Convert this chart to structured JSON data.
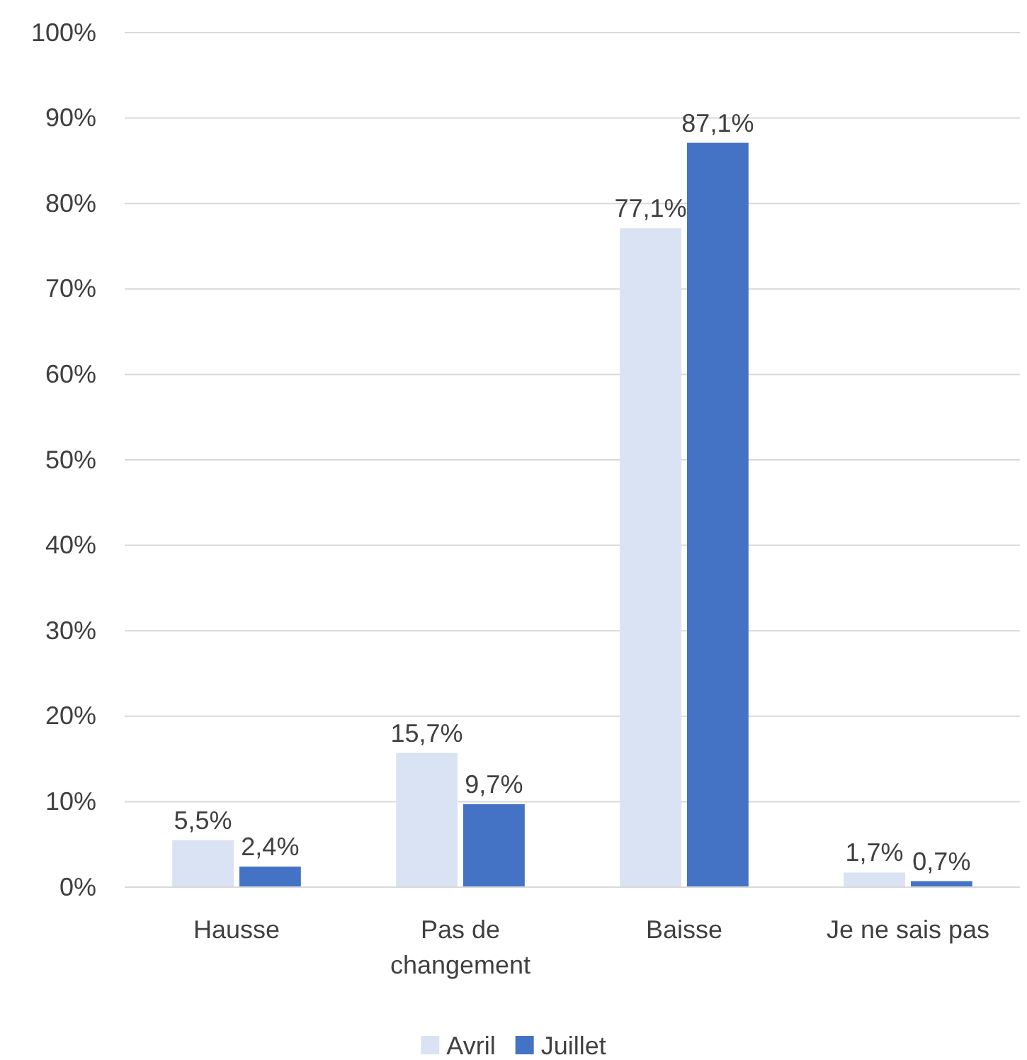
{
  "chart_data": {
    "type": "bar",
    "categories": [
      "Hausse",
      "Pas de\nchangement",
      "Baisse",
      "Je ne sais pas"
    ],
    "series": [
      {
        "name": "Avril",
        "color": "#dae3f3",
        "values": [
          5.5,
          15.7,
          77.1,
          1.7
        ],
        "value_labels": [
          "5,5%",
          "15,7%",
          "77,1%",
          "1,7%"
        ]
      },
      {
        "name": "Juillet",
        "color": "#4472c4",
        "values": [
          2.4,
          9.7,
          87.1,
          0.7
        ],
        "value_labels": [
          "2,4%",
          "9,7%",
          "87,1%",
          "0,7%"
        ]
      }
    ],
    "ylim": [
      0,
      100
    ],
    "yticks": [
      {
        "value": 0,
        "label": "0%"
      },
      {
        "value": 10,
        "label": "10%"
      },
      {
        "value": 20,
        "label": "20%"
      },
      {
        "value": 30,
        "label": "30%"
      },
      {
        "value": 40,
        "label": "40%"
      },
      {
        "value": 50,
        "label": "50%"
      },
      {
        "value": 60,
        "label": "60%"
      },
      {
        "value": 70,
        "label": "70%"
      },
      {
        "value": 80,
        "label": "80%"
      },
      {
        "value": 90,
        "label": "90%"
      },
      {
        "value": 100,
        "label": "100%"
      }
    ],
    "grid": "y",
    "legend": "bottom"
  }
}
